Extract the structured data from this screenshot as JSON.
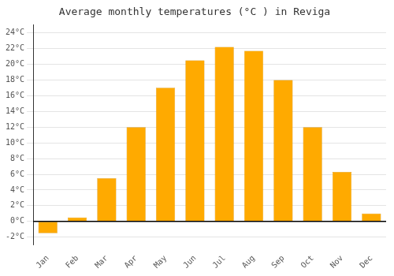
{
  "chart_data": {
    "type": "bar",
    "title": "Average monthly temperatures (°C ) in Reviga",
    "categories": [
      "Jan",
      "Feb",
      "Mar",
      "Apr",
      "May",
      "Jun",
      "Jul",
      "Aug",
      "Sep",
      "Oct",
      "Nov",
      "Dec"
    ],
    "values": [
      -1.5,
      0.5,
      5.5,
      12.0,
      17.0,
      20.5,
      22.2,
      21.7,
      18.0,
      12.0,
      6.3,
      1.0
    ],
    "color": "#FFAA00",
    "ylim": [
      -3,
      25
    ],
    "yticks": [
      {
        "value": -2,
        "label": "-2°C"
      },
      {
        "value": 0,
        "label": "0°C"
      },
      {
        "value": 2,
        "label": "2°C"
      },
      {
        "value": 4,
        "label": "4°C"
      },
      {
        "value": 6,
        "label": "6°C"
      },
      {
        "value": 8,
        "label": "8°C"
      },
      {
        "value": 10,
        "label": "10°C"
      },
      {
        "value": 12,
        "label": "12°C"
      },
      {
        "value": 14,
        "label": "14°C"
      },
      {
        "value": 16,
        "label": "16°C"
      },
      {
        "value": 18,
        "label": "18°C"
      },
      {
        "value": 20,
        "label": "20°C"
      },
      {
        "value": 22,
        "label": "22°C"
      },
      {
        "value": 24,
        "label": "24°C"
      }
    ],
    "grid": true
  }
}
